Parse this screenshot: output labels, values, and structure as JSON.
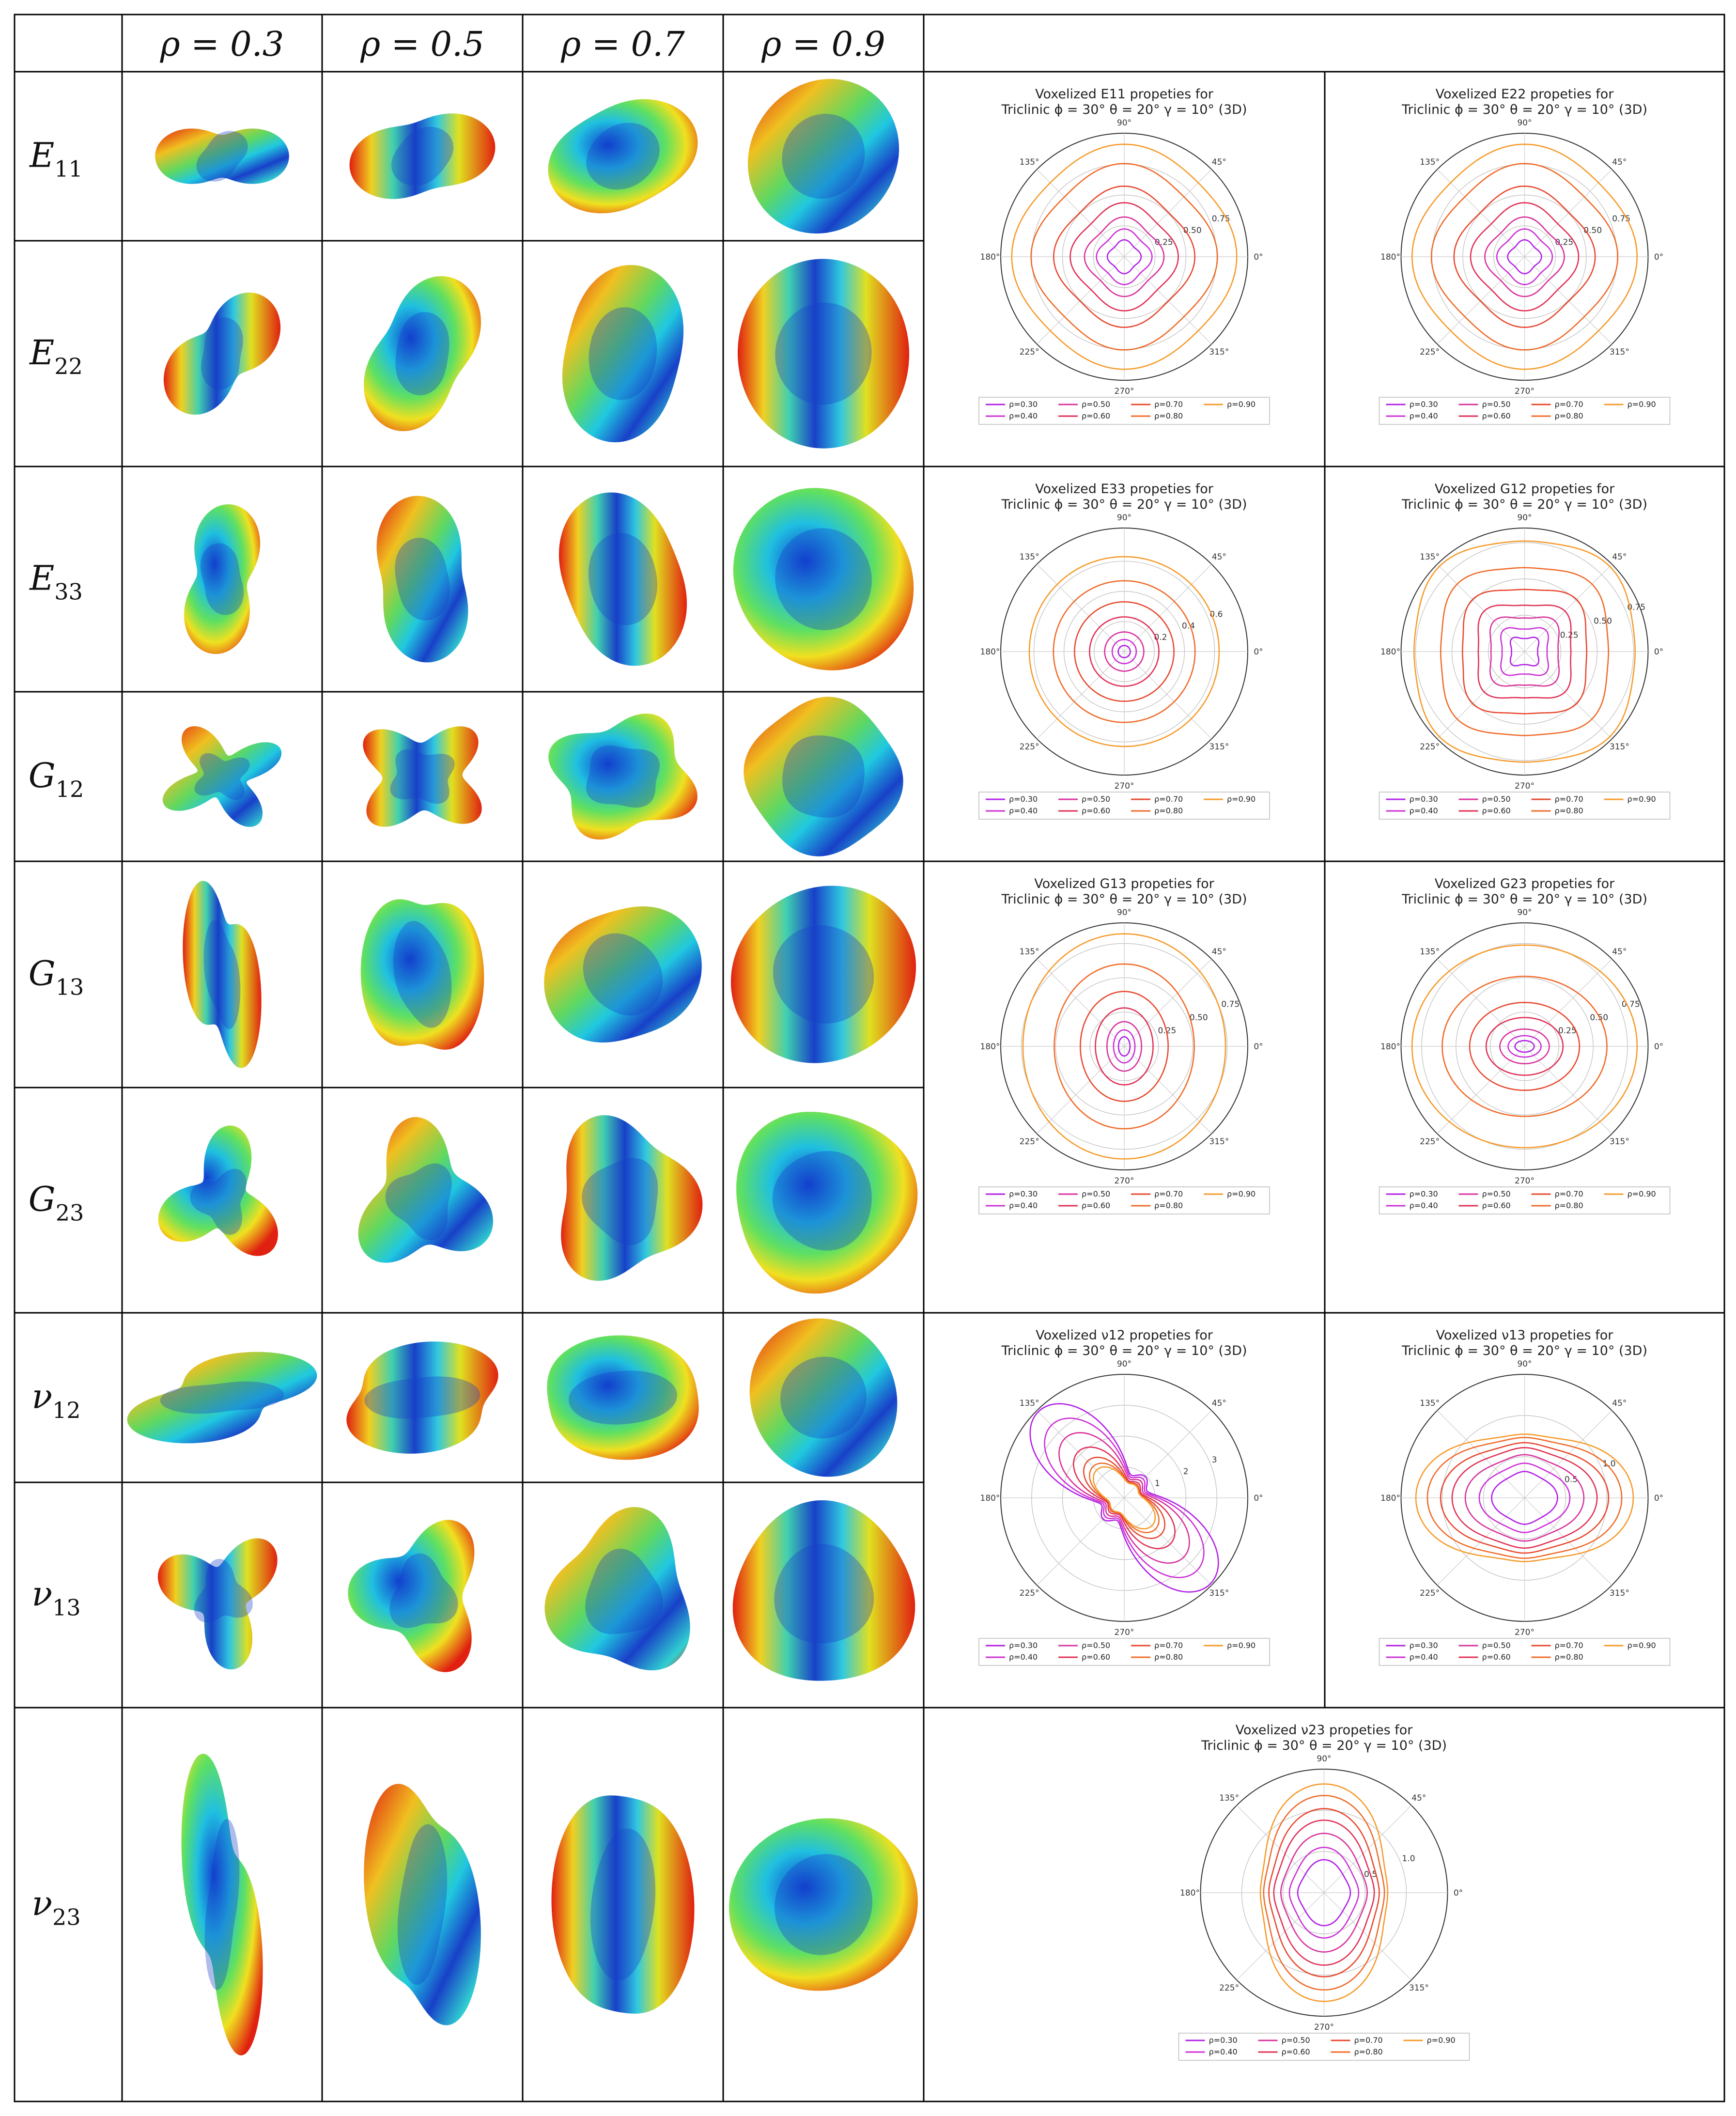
{
  "header": {
    "col1": "ρ = 0.3",
    "col2": "ρ = 0.5",
    "col3": "ρ = 0.7",
    "col4": "ρ = 0.9"
  },
  "rows": [
    {
      "label": "E",
      "sub": "11"
    },
    {
      "label": "E",
      "sub": "22"
    },
    {
      "label": "E",
      "sub": "33"
    },
    {
      "label": "G",
      "sub": "12"
    },
    {
      "label": "G",
      "sub": "13"
    },
    {
      "label": "G",
      "sub": "23"
    },
    {
      "label": "ν",
      "sub": "12"
    },
    {
      "label": "ν",
      "sub": "13"
    },
    {
      "label": "ν",
      "sub": "23"
    }
  ],
  "plot_title_line2": "Triclinic ϕ = 30° θ = 20° γ = 10° (3D)",
  "angle_labels": [
    "0°",
    "45°",
    "90°",
    "135°",
    "180°",
    "225°",
    "270°",
    "315°"
  ],
  "legend_labels": [
    "ρ=0.30",
    "ρ=0.50",
    "ρ=0.70",
    "ρ=0.90",
    "ρ=0.40",
    "ρ=0.60",
    "ρ=0.80"
  ],
  "colors": {
    "rho_030": "#b21ee6",
    "rho_040": "#cc2ed6",
    "rho_050": "#d8309c",
    "rho_060": "#e02f55",
    "rho_070": "#e8472d",
    "rho_080": "#f06a28",
    "rho_090": "#f79a2a"
  },
  "chart_data": [
    {
      "type": "polar-line",
      "title": "Voxelized E11 propeties for",
      "quantity": "E11",
      "series": [
        "ρ=0.30",
        "ρ=0.40",
        "ρ=0.50",
        "ρ=0.60",
        "ρ=0.70",
        "ρ=0.80",
        "ρ=0.90"
      ],
      "radial_ticks": [
        "0.25",
        "0.50",
        "0.75"
      ],
      "rmax": 1.0,
      "levels": [
        0.12,
        0.2,
        0.29,
        0.4,
        0.53,
        0.71,
        0.87
      ],
      "shape": "clover"
    },
    {
      "type": "polar-line",
      "title": "Voxelized E22 propeties for",
      "quantity": "E22",
      "series": [
        "ρ=0.30",
        "ρ=0.40",
        "ρ=0.50",
        "ρ=0.60",
        "ρ=0.70",
        "ρ=0.80",
        "ρ=0.90"
      ],
      "radial_ticks": [
        "0.25",
        "0.50",
        "0.75"
      ],
      "rmax": 1.0,
      "levels": [
        0.12,
        0.2,
        0.29,
        0.4,
        0.53,
        0.71,
        0.87
      ],
      "shape": "clover"
    },
    {
      "type": "polar-line",
      "title": "Voxelized E33 propeties for",
      "quantity": "E33",
      "series": [
        "ρ=0.30",
        "ρ=0.40",
        "ρ=0.50",
        "ρ=0.60",
        "ρ=0.70",
        "ρ=0.80",
        "ρ=0.90"
      ],
      "radial_ticks": [
        "0.2",
        "0.4",
        "0.6"
      ],
      "rmax": 0.82,
      "levels": [
        0.04,
        0.08,
        0.13,
        0.23,
        0.33,
        0.47,
        0.63
      ],
      "shape": "circle"
    },
    {
      "type": "polar-line",
      "title": "Voxelized G12 propeties for",
      "quantity": "G12",
      "series": [
        "ρ=0.30",
        "ρ=0.40",
        "ρ=0.50",
        "ρ=0.60",
        "ρ=0.70",
        "ρ=0.80",
        "ρ=0.90"
      ],
      "radial_ticks": [
        "0.25",
        "0.50",
        "0.75"
      ],
      "rmax": 0.85,
      "levels": [
        0.1,
        0.17,
        0.25,
        0.34,
        0.45,
        0.6,
        0.78
      ],
      "shape": "star"
    },
    {
      "type": "polar-line",
      "title": "Voxelized G13 propeties for",
      "quantity": "G13",
      "series": [
        "ρ=0.30",
        "ρ=0.40",
        "ρ=0.50",
        "ρ=0.60",
        "ρ=0.70",
        "ρ=0.80",
        "ρ=0.90"
      ],
      "radial_ticks": [
        "0.25",
        "0.50",
        "0.75"
      ],
      "rmax": 0.9,
      "levels": [
        0.07,
        0.12,
        0.18,
        0.28,
        0.4,
        0.6,
        0.82
      ],
      "shape": "ellipse-v"
    },
    {
      "type": "polar-line",
      "title": "Voxelized G23 propeties for",
      "quantity": "G23",
      "series": [
        "ρ=0.30",
        "ρ=0.40",
        "ρ=0.50",
        "ρ=0.60",
        "ρ=0.70",
        "ρ=0.80",
        "ρ=0.90"
      ],
      "radial_ticks": [
        "0.25",
        "0.50",
        "0.75"
      ],
      "rmax": 0.9,
      "levels": [
        0.07,
        0.12,
        0.18,
        0.28,
        0.4,
        0.6,
        0.82
      ],
      "shape": "ellipse-h"
    },
    {
      "type": "polar-line",
      "title": "Voxelized ν12 propeties for",
      "quantity": "v12",
      "series": [
        "ρ=0.30",
        "ρ=0.40",
        "ρ=0.50",
        "ρ=0.60",
        "ρ=0.70",
        "ρ=0.80",
        "ρ=0.90"
      ],
      "radial_ticks": [
        "1",
        "2",
        "3"
      ],
      "rmax": 4.0,
      "levels": [
        4.1,
        3.4,
        2.7,
        2.0,
        1.5,
        1.2,
        1.0
      ],
      "shape": "lobes"
    },
    {
      "type": "polar-line",
      "title": "Voxelized ν13 propeties for",
      "quantity": "v13",
      "series": [
        "ρ=0.30",
        "ρ=0.40",
        "ρ=0.50",
        "ρ=0.60",
        "ρ=0.70",
        "ρ=0.80",
        "ρ=0.90"
      ],
      "radial_ticks": [
        "0.5",
        "1.0"
      ],
      "rmax": 1.5,
      "levels": [
        0.4,
        0.55,
        0.72,
        0.88,
        1.02,
        1.18,
        1.32
      ],
      "shape": "cross-h"
    },
    {
      "type": "polar-line",
      "title": "Voxelized ν23 propeties for",
      "quantity": "v23",
      "series": [
        "ρ=0.30",
        "ρ=0.40",
        "ρ=0.50",
        "ρ=0.60",
        "ρ=0.70",
        "ρ=0.80",
        "ρ=0.90"
      ],
      "radial_ticks": [
        "0.5",
        "1.0"
      ],
      "rmax": 1.5,
      "levels": [
        0.4,
        0.55,
        0.72,
        0.88,
        1.02,
        1.18,
        1.32
      ],
      "shape": "cross-v"
    }
  ]
}
